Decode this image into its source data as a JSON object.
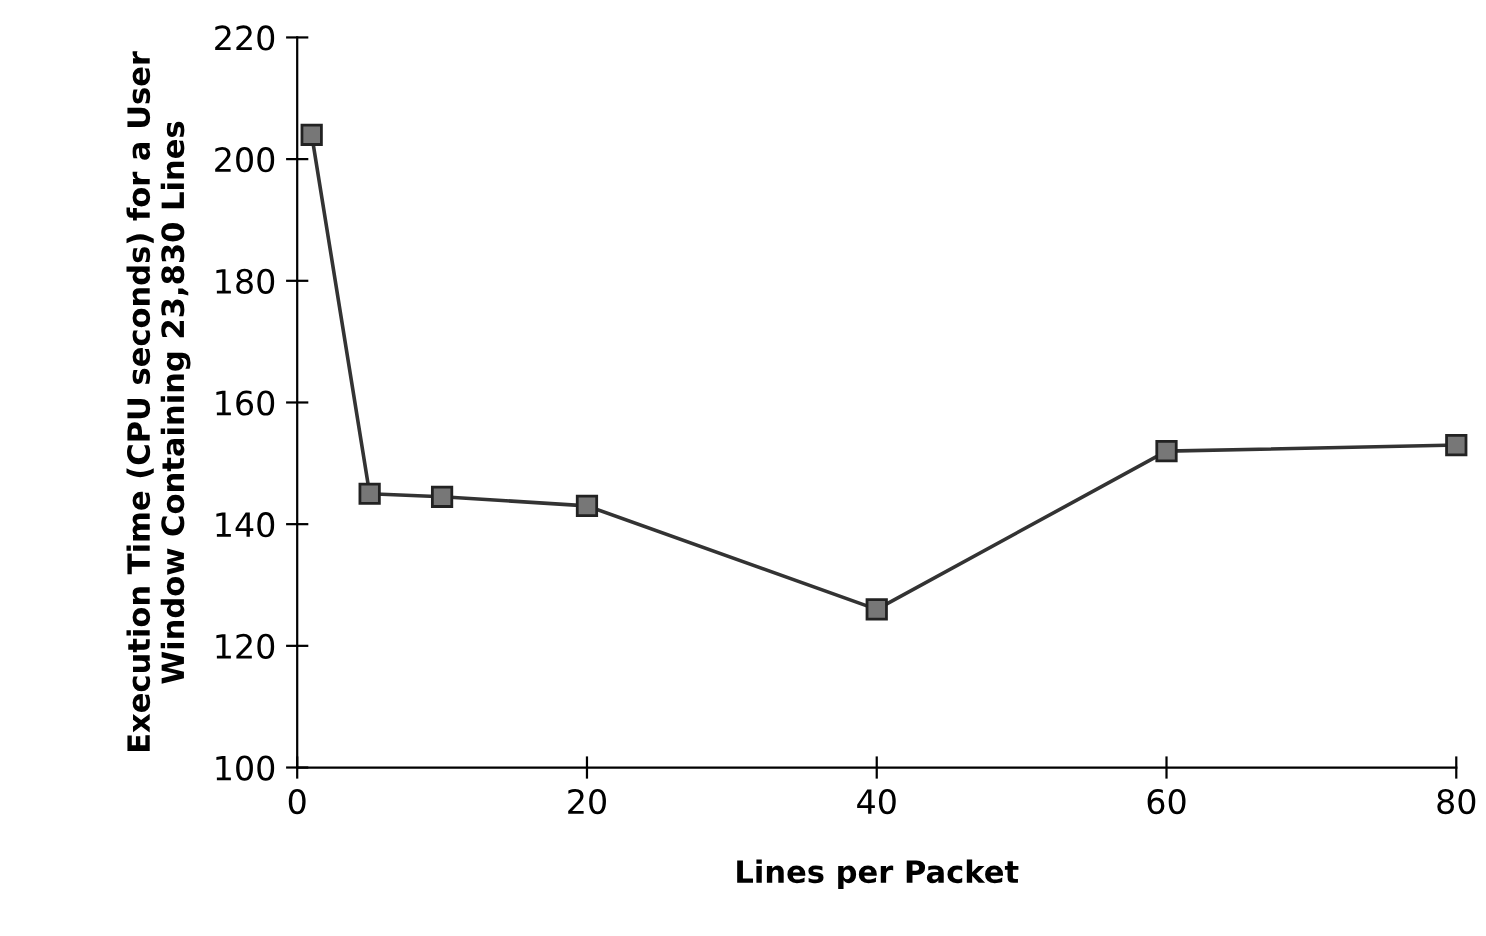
{
  "chart_data": {
    "type": "line",
    "xlabel": "Lines per Packet",
    "ylabel": "Execution Time (CPU seconds) for a User\nWindow Containing 23,830 Lines",
    "x": [
      1,
      5,
      10,
      20,
      40,
      60,
      80
    ],
    "series": [
      {
        "color": "#333333",
        "values": [
          204,
          145,
          144.5,
          143,
          126,
          152,
          153
        ]
      }
    ],
    "xlim": [
      0,
      80
    ],
    "xticks": [
      0,
      20,
      40,
      60,
      80
    ],
    "ylim": [
      100,
      220
    ],
    "yticks": [
      100,
      120,
      140,
      160,
      180,
      200,
      220
    ],
    "grid": false,
    "legend": false,
    "marker": "square",
    "line_style": "solid"
  }
}
